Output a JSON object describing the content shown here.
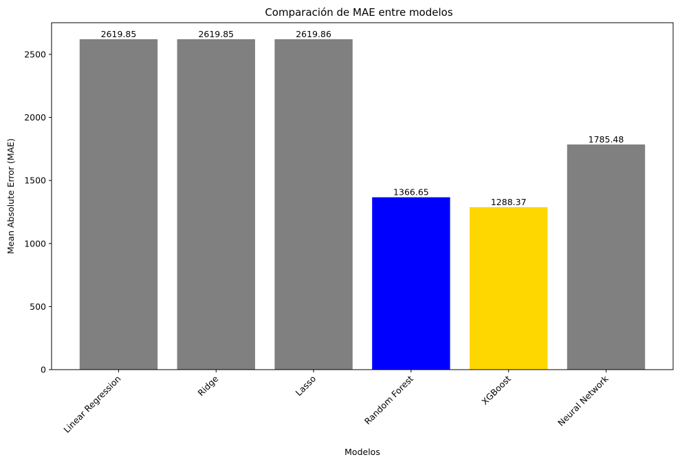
{
  "chart_data": {
    "type": "bar",
    "title": "Comparación de MAE entre modelos",
    "xlabel": "Modelos",
    "ylabel": "Mean Absolute Error (MAE)",
    "categories": [
      "Linear Regression",
      "Ridge",
      "Lasso",
      "Random Forest",
      "XGBoost",
      "Neural Network"
    ],
    "values": [
      2619.85,
      2619.85,
      2619.86,
      1366.65,
      1288.37,
      1785.48
    ],
    "value_labels": [
      "2619.85",
      "2619.85",
      "2619.86",
      "1366.65",
      "1288.37",
      "1785.48"
    ],
    "colors": [
      "#808080",
      "#808080",
      "#808080",
      "#0000ff",
      "#ffd700",
      "#808080"
    ],
    "ylim": [
      0,
      2750.85
    ],
    "yticks": [
      0,
      500,
      1000,
      1500,
      2000,
      2500
    ],
    "ytick_labels": [
      "0",
      "500",
      "1000",
      "1500",
      "2000",
      "2500"
    ],
    "grid": false,
    "legend": "none"
  }
}
